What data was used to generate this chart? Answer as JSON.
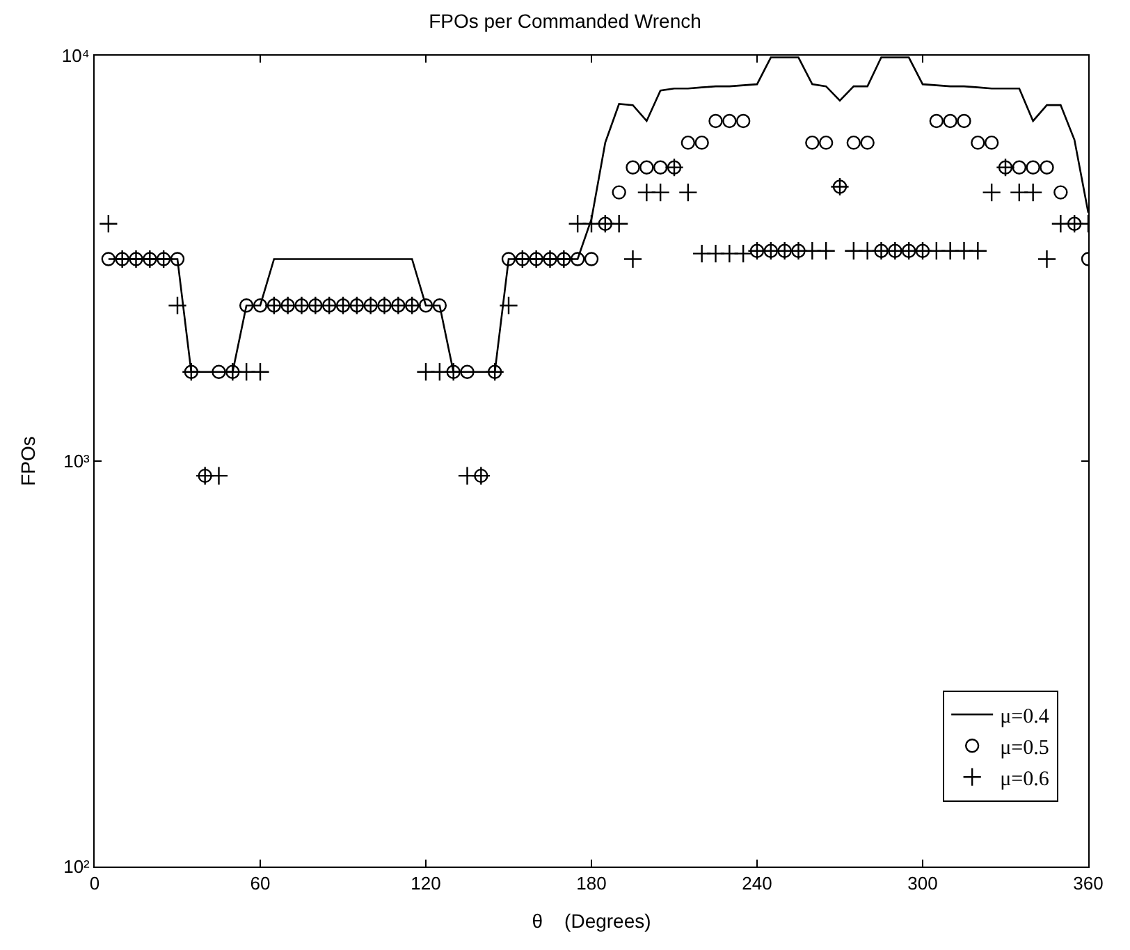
{
  "chart_data": {
    "type": "scatter",
    "title": "FPOs per Commanded Wrench",
    "xlabel": "θ    (Degrees)",
    "ylabel": "FPOs",
    "x": [
      5,
      10,
      15,
      20,
      25,
      30,
      35,
      40,
      45,
      50,
      55,
      60,
      65,
      70,
      75,
      80,
      85,
      90,
      95,
      100,
      105,
      110,
      115,
      120,
      125,
      130,
      135,
      140,
      145,
      150,
      155,
      160,
      165,
      170,
      175,
      180,
      185,
      190,
      195,
      200,
      205,
      210,
      215,
      220,
      225,
      230,
      235,
      240,
      245,
      250,
      255,
      260,
      265,
      270,
      275,
      280,
      285,
      290,
      295,
      300,
      305,
      310,
      315,
      320,
      325,
      330,
      335,
      340,
      345,
      350,
      355,
      360
    ],
    "series": [
      {
        "name": "μ=0.4",
        "type": "line",
        "marker": "none",
        "line_style": "solid",
        "color": "#000000",
        "values": [
          3150,
          3150,
          3150,
          3150,
          3150,
          3150,
          1660,
          1660,
          1660,
          1660,
          2420,
          2420,
          3150,
          3150,
          3150,
          3150,
          3150,
          3150,
          3150,
          3150,
          3150,
          3150,
          3150,
          2420,
          2420,
          1660,
          1660,
          1660,
          1660,
          3150,
          3150,
          3150,
          3150,
          3150,
          3150,
          3950,
          6100,
          7600,
          7550,
          6900,
          8200,
          8300,
          8300,
          8350,
          8400,
          8400,
          8450,
          8500,
          9900,
          9900,
          9900,
          8500,
          8400,
          7750,
          8400,
          8400,
          9900,
          9900,
          9900,
          8500,
          8450,
          8400,
          8400,
          8350,
          8300,
          8300,
          8300,
          6900,
          7550,
          7550,
          6200,
          4100
        ]
      },
      {
        "name": "μ=0.5",
        "marker": "circle",
        "color": "#000000",
        "values": [
          3150,
          3150,
          3150,
          3150,
          3150,
          3150,
          1660,
          920,
          1660,
          1660,
          2420,
          2420,
          2420,
          2420,
          2420,
          2420,
          2420,
          2420,
          2420,
          2420,
          2420,
          2420,
          2420,
          2420,
          2420,
          1660,
          1660,
          920,
          1660,
          3150,
          3150,
          3150,
          3150,
          3150,
          3150,
          3150,
          3850,
          4600,
          5300,
          5300,
          5300,
          5300,
          6100,
          6100,
          6900,
          6900,
          6900,
          3300,
          3300,
          3300,
          3300,
          6100,
          6100,
          4750,
          6100,
          6100,
          3300,
          3300,
          3300,
          3300,
          6900,
          6900,
          6900,
          6100,
          6100,
          5300,
          5300,
          5300,
          5300,
          4600,
          3850,
          3150
        ]
      },
      {
        "name": "μ=0.6",
        "marker": "cross",
        "color": "#000000",
        "values": [
          3850,
          3150,
          3150,
          3150,
          3150,
          2420,
          1660,
          920,
          920,
          1660,
          1660,
          1660,
          2420,
          2420,
          2420,
          2420,
          2420,
          2420,
          2420,
          2420,
          2420,
          2420,
          2420,
          1660,
          1660,
          1660,
          920,
          920,
          1660,
          2420,
          3150,
          3150,
          3150,
          3150,
          3850,
          3850,
          3850,
          3850,
          3150,
          4600,
          4600,
          5300,
          4600,
          3250,
          3250,
          3250,
          3250,
          3300,
          3300,
          3300,
          3300,
          3300,
          3300,
          4750,
          3300,
          3300,
          3300,
          3300,
          3300,
          3300,
          3300,
          3300,
          3300,
          3300,
          4600,
          5300,
          4600,
          4600,
          3150,
          3850,
          3850,
          3850
        ]
      }
    ],
    "log": "y",
    "xlim": [
      0,
      360
    ],
    "xticks": [
      0,
      60,
      120,
      180,
      240,
      300,
      360
    ],
    "ylim": [
      100,
      10000
    ],
    "yticks": [
      {
        "value": 100,
        "label": "10²"
      },
      {
        "value": 1000,
        "label": "10³"
      },
      {
        "value": 10000,
        "label": "10⁴"
      }
    ],
    "legend": "bottom right"
  }
}
